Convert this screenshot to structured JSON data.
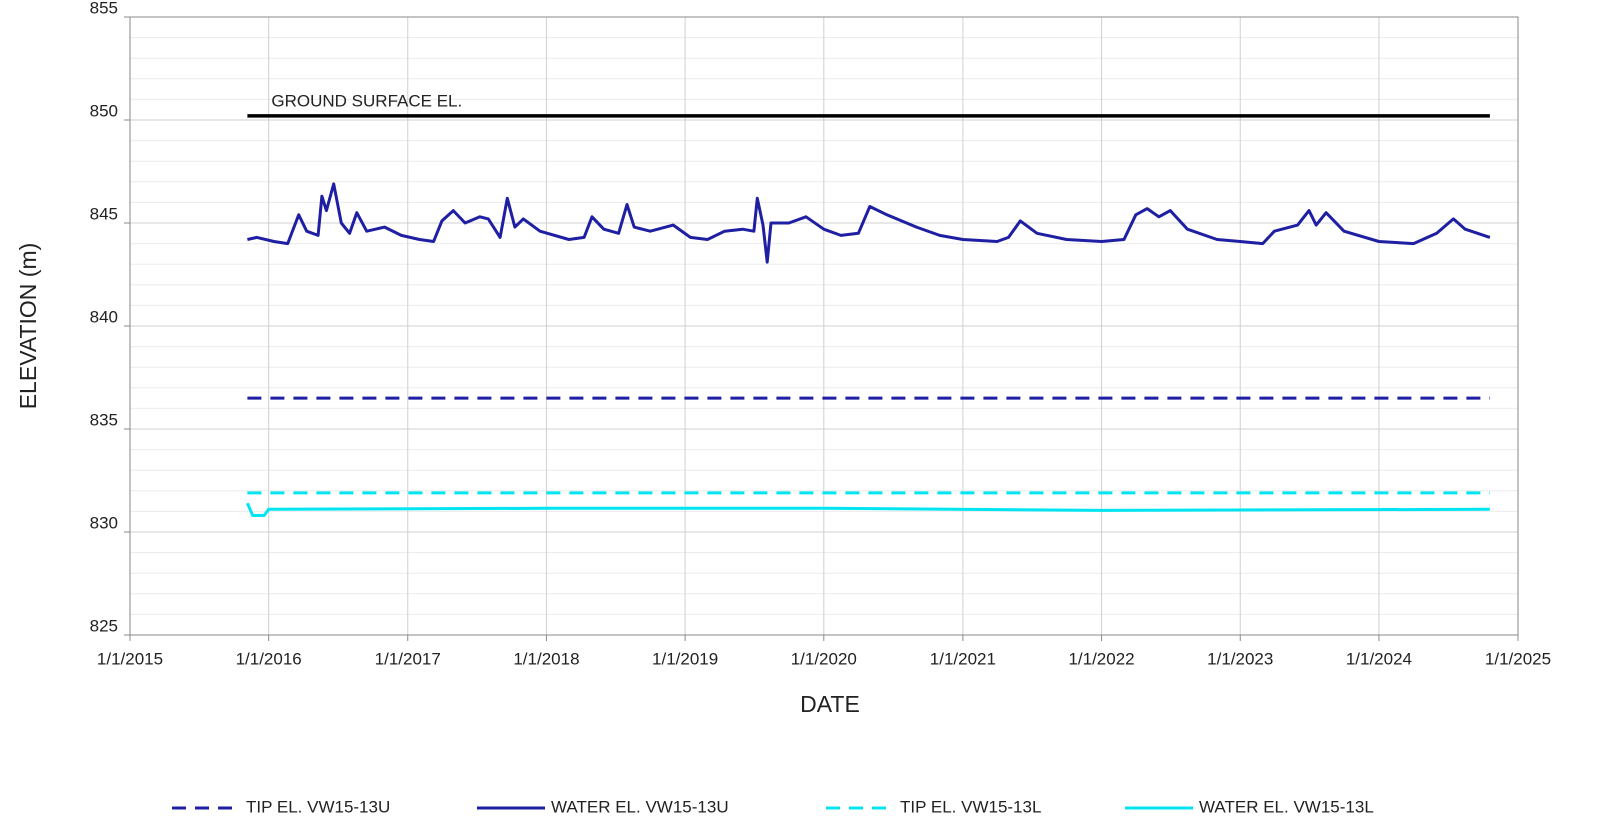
{
  "chart_data": {
    "type": "line",
    "xlabel": "DATE",
    "ylabel": "ELEVATION (m)",
    "xlim": [
      "2015-01-01",
      "2025-01-01"
    ],
    "xticks": [
      {
        "value": "2015-01-01",
        "label": "1/1/2015"
      },
      {
        "value": "2016-01-01",
        "label": "1/1/2016"
      },
      {
        "value": "2017-01-01",
        "label": "1/1/2017"
      },
      {
        "value": "2018-01-01",
        "label": "1/1/2018"
      },
      {
        "value": "2019-01-01",
        "label": "1/1/2019"
      },
      {
        "value": "2020-01-01",
        "label": "1/1/2020"
      },
      {
        "value": "2021-01-01",
        "label": "1/1/2021"
      },
      {
        "value": "2022-01-01",
        "label": "1/1/2022"
      },
      {
        "value": "2023-01-01",
        "label": "1/1/2023"
      },
      {
        "value": "2024-01-01",
        "label": "1/1/2024"
      },
      {
        "value": "2025-01-01",
        "label": "1/1/2025"
      }
    ],
    "ylim": [
      825,
      855
    ],
    "yticks": [
      825,
      830,
      835,
      840,
      845,
      850,
      855
    ],
    "grid": true,
    "minor_grid": true,
    "legend": "bottom",
    "series": [
      {
        "name": "GROUND SURFACE EL.",
        "color": "#000000",
        "dash": false,
        "legend": false,
        "label_on_line": true,
        "x": [
          "2015-11-06",
          "2024-10-19"
        ],
        "values": [
          850.2,
          850.2
        ]
      },
      {
        "name": "TIP EL. VW15-13U",
        "color": "#1f1fa3",
        "dash": true,
        "x": [
          "2015-11-06",
          "2024-10-19"
        ],
        "values": [
          836.5,
          836.5
        ]
      },
      {
        "name": "WATER EL. VW15-13U",
        "color": "#1f1fa3",
        "dash": false,
        "x": [
          "2015-11-06",
          "2015-12-01",
          "2016-01-15",
          "2016-02-20",
          "2016-03-20",
          "2016-04-10",
          "2016-05-10",
          "2016-05-20",
          "2016-06-01",
          "2016-06-20",
          "2016-07-10",
          "2016-08-01",
          "2016-08-20",
          "2016-09-15",
          "2016-11-01",
          "2016-12-15",
          "2017-02-01",
          "2017-03-10",
          "2017-04-01",
          "2017-05-01",
          "2017-06-01",
          "2017-07-10",
          "2017-08-01",
          "2017-09-01",
          "2017-09-20",
          "2017-10-10",
          "2017-11-01",
          "2017-12-15",
          "2018-03-01",
          "2018-04-10",
          "2018-05-01",
          "2018-06-01",
          "2018-07-10",
          "2018-08-01",
          "2018-08-20",
          "2018-10-01",
          "2018-12-01",
          "2019-01-15",
          "2019-03-01",
          "2019-04-15",
          "2019-06-01",
          "2019-07-01",
          "2019-07-10",
          "2019-07-25",
          "2019-08-05",
          "2019-08-15",
          "2019-10-01",
          "2019-11-15",
          "2020-01-01",
          "2020-02-15",
          "2020-04-01",
          "2020-05-01",
          "2020-06-15",
          "2020-09-01",
          "2020-11-01",
          "2021-01-01",
          "2021-04-01",
          "2021-05-01",
          "2021-06-01",
          "2021-07-15",
          "2021-10-01",
          "2022-01-01",
          "2022-03-01",
          "2022-04-01",
          "2022-05-01",
          "2022-06-01",
          "2022-07-01",
          "2022-08-15",
          "2022-11-01",
          "2023-01-01",
          "2023-03-01",
          "2023-04-01",
          "2023-06-01",
          "2023-07-01",
          "2023-07-20",
          "2023-08-15",
          "2023-10-01",
          "2024-01-01",
          "2024-04-01",
          "2024-06-01",
          "2024-07-15",
          "2024-08-15",
          "2024-10-19"
        ],
        "values": [
          844.2,
          844.3,
          844.1,
          844.0,
          845.4,
          844.6,
          844.4,
          846.3,
          845.6,
          846.9,
          845.0,
          844.5,
          845.5,
          844.6,
          844.8,
          844.4,
          844.2,
          844.1,
          845.1,
          845.6,
          845.0,
          845.3,
          845.2,
          844.3,
          846.2,
          844.8,
          845.2,
          844.6,
          844.2,
          844.3,
          845.3,
          844.7,
          844.5,
          845.9,
          844.8,
          844.6,
          844.9,
          844.3,
          844.2,
          844.6,
          844.7,
          844.6,
          846.2,
          844.9,
          843.1,
          845.0,
          845.0,
          845.3,
          844.7,
          844.4,
          844.5,
          845.8,
          845.4,
          844.8,
          844.4,
          844.2,
          844.1,
          844.3,
          845.1,
          844.5,
          844.2,
          844.1,
          844.2,
          845.4,
          845.7,
          845.3,
          845.6,
          844.7,
          844.2,
          844.1,
          844.0,
          844.6,
          844.9,
          845.6,
          844.9,
          845.5,
          844.6,
          844.1,
          844.0,
          844.5,
          845.2,
          844.7,
          844.3
        ]
      },
      {
        "name": "TIP EL. VW15-13L",
        "color": "#00e5f0",
        "dash": true,
        "x": [
          "2015-11-06",
          "2024-10-19"
        ],
        "values": [
          831.9,
          831.9
        ]
      },
      {
        "name": "WATER EL. VW15-13L",
        "color": "#00e5f0",
        "dash": false,
        "x": [
          "2015-11-06",
          "2015-11-20",
          "2015-12-20",
          "2016-01-01",
          "2018-01-01",
          "2020-01-01",
          "2022-01-01",
          "2024-10-19"
        ],
        "values": [
          831.4,
          830.8,
          830.8,
          831.1,
          831.15,
          831.15,
          831.05,
          831.1
        ]
      }
    ]
  }
}
